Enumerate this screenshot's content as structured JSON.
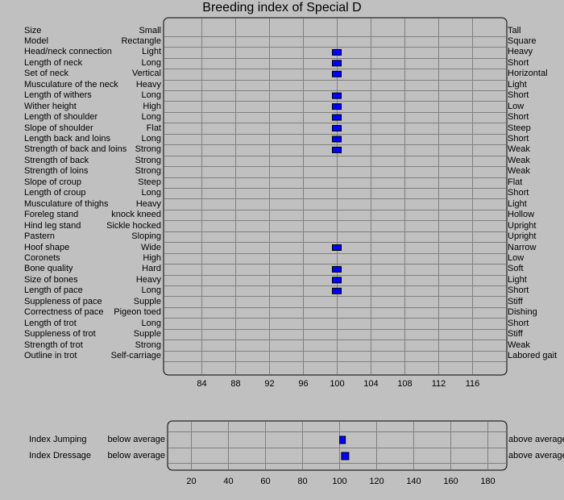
{
  "chart_data": [
    {
      "type": "bar",
      "title": "Breeding index of Special D",
      "xlim": [
        80,
        120
      ],
      "xticks": [
        84,
        88,
        92,
        96,
        100,
        104,
        108,
        112,
        116
      ],
      "grid": true,
      "traits": [
        {
          "name": "Size",
          "low": "Small",
          "high": "Tall",
          "value": null
        },
        {
          "name": "Model",
          "low": "Rectangle",
          "high": "Square",
          "value": null
        },
        {
          "name": "Head/neck connection",
          "low": "Light",
          "high": "Heavy",
          "value": 100
        },
        {
          "name": "Length of neck",
          "low": "Long",
          "high": "Short",
          "value": 100
        },
        {
          "name": "Set of neck",
          "low": "Vertical",
          "high": "Horizontal",
          "value": 100
        },
        {
          "name": "Musculature of the neck",
          "low": "Heavy",
          "high": "Light",
          "value": null
        },
        {
          "name": "Length of withers",
          "low": "Long",
          "high": "Short",
          "value": 100
        },
        {
          "name": "Wither height",
          "low": "High",
          "high": "Low",
          "value": 100
        },
        {
          "name": "Length of shoulder",
          "low": "Long",
          "high": "Short",
          "value": 100
        },
        {
          "name": "Slope of shoulder",
          "low": "Flat",
          "high": "Steep",
          "value": 100
        },
        {
          "name": "Length back and loins",
          "low": "Long",
          "high": "Short",
          "value": 100
        },
        {
          "name": "Strength of back and loins",
          "low": "Strong",
          "high": "Weak",
          "value": 100
        },
        {
          "name": "Strength of back",
          "low": "Strong",
          "high": "Weak",
          "value": null
        },
        {
          "name": "Strength of loins",
          "low": "Strong",
          "high": "Weak",
          "value": null
        },
        {
          "name": "Slope of croup",
          "low": "Steep",
          "high": "Flat",
          "value": null
        },
        {
          "name": "Length of croup",
          "low": "Long",
          "high": "Short",
          "value": null
        },
        {
          "name": "Musculature of thighs",
          "low": "Heavy",
          "high": "Light",
          "value": null
        },
        {
          "name": "Foreleg stand",
          "low": "knock kneed",
          "high": "Hollow",
          "value": null
        },
        {
          "name": "Hind leg stand",
          "low": "Sickle hocked",
          "high": "Upright",
          "value": null
        },
        {
          "name": "Pastern",
          "low": "Sloping",
          "high": "Upright",
          "value": null
        },
        {
          "name": "Hoof shape",
          "low": "Wide",
          "high": "Narrow",
          "value": 100
        },
        {
          "name": "Coronets",
          "low": "High",
          "high": "Low",
          "value": null
        },
        {
          "name": "Bone quality",
          "low": "Hard",
          "high": "Soft",
          "value": 100
        },
        {
          "name": "Size of bones",
          "low": "Heavy",
          "high": "Light",
          "value": 100
        },
        {
          "name": "Length of pace",
          "low": "Long",
          "high": "Short",
          "value": 100
        },
        {
          "name": "Suppleness of pace",
          "low": "Supple",
          "high": "Stiff",
          "value": null
        },
        {
          "name": "Correctness of pace",
          "low": "Pigeon toed",
          "high": "Dishing",
          "value": null
        },
        {
          "name": "Length of trot",
          "low": "Long",
          "high": "Short",
          "value": null
        },
        {
          "name": "Suppleness of trot",
          "low": "Supple",
          "high": "Stiff",
          "value": null
        },
        {
          "name": "Strength of trot",
          "low": "Strong",
          "high": "Weak",
          "value": null
        },
        {
          "name": "Outline in trot",
          "low": "Self-carriage",
          "high": "Labored gait",
          "value": null
        }
      ]
    },
    {
      "type": "bar",
      "title": "",
      "xlim": [
        10,
        190
      ],
      "xticks": [
        20,
        40,
        60,
        80,
        100,
        120,
        140,
        160,
        180
      ],
      "grid": true,
      "indices": [
        {
          "name": "Index Jumping",
          "low": "below average",
          "high": "above average",
          "value": 102
        },
        {
          "name": "Index Dressage",
          "low": "below average",
          "high": "above average",
          "value": 103
        }
      ]
    }
  ],
  "colors": {
    "background": "#c0c0c0",
    "marker": "#0000ff",
    "grid": "#808080",
    "frame": "#000000"
  }
}
